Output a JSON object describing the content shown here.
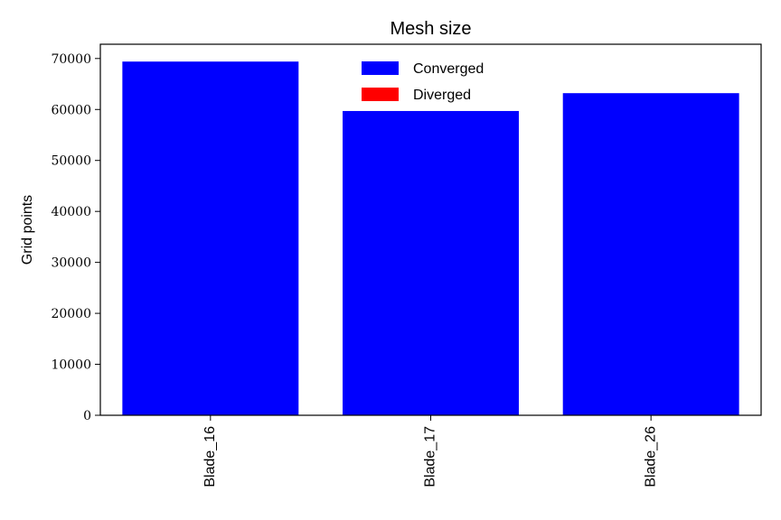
{
  "chart_data": {
    "type": "bar",
    "title": "Mesh size",
    "xlabel": "",
    "ylabel": "Grid points",
    "categories": [
      "Blade_16",
      "Blade_17",
      "Blade_26"
    ],
    "series": [
      {
        "name": "Converged",
        "values": [
          69400,
          59700,
          63200
        ],
        "color": "#0000ff"
      },
      {
        "name": "Diverged",
        "values": [
          0,
          0,
          0
        ],
        "color": "#ff0000"
      }
    ],
    "ylim": [
      0,
      72800
    ],
    "yticks": [
      0,
      10000,
      20000,
      30000,
      40000,
      50000,
      60000,
      70000
    ],
    "legend": "top-center",
    "grid": false
  }
}
